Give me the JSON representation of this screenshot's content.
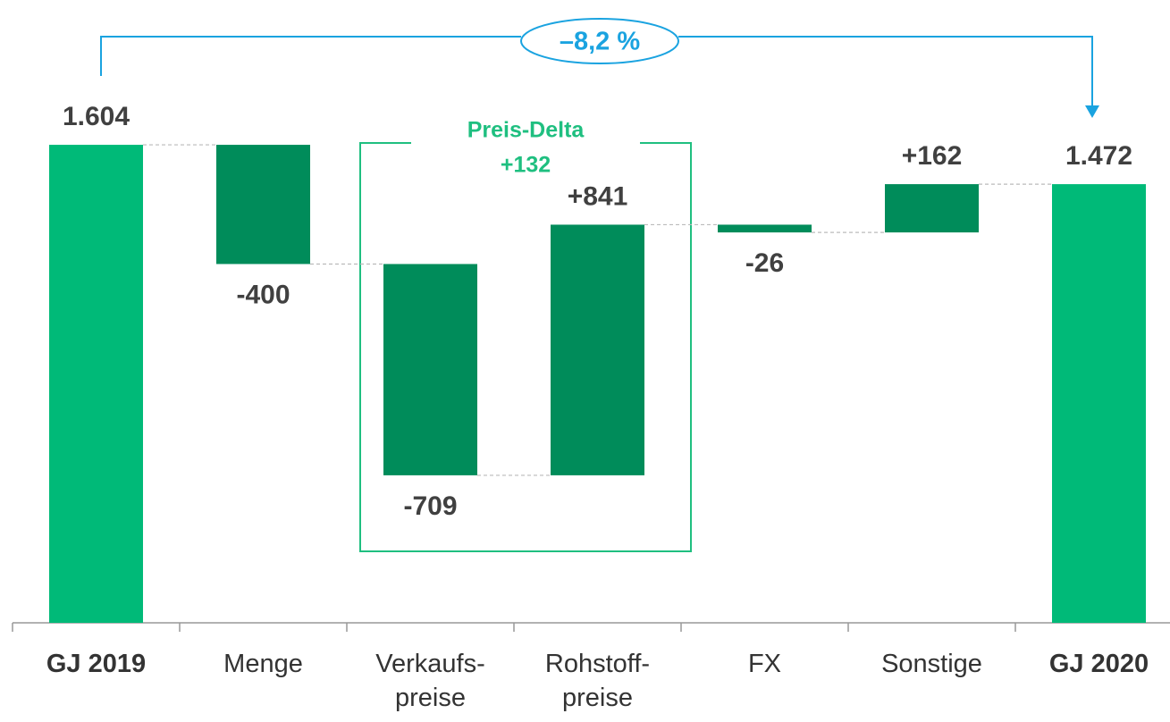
{
  "chart_data": {
    "type": "waterfall",
    "categories": [
      "GJ 2019",
      "Menge",
      "Verkaufs-\npreise",
      "Rohstoff-\npreise",
      "FX",
      "Sonstige",
      "GJ 2020"
    ],
    "measure": [
      "absolute",
      "relative",
      "relative",
      "relative",
      "relative",
      "relative",
      "absolute"
    ],
    "values": [
      1604,
      -400,
      -709,
      841,
      -26,
      162,
      1472
    ],
    "value_labels": [
      "1.604",
      "-400",
      "-709",
      "+841",
      "-26",
      "+162",
      "1.472"
    ],
    "total_color": "#00ba78",
    "delta_color": "#008c5a",
    "ylim": [
      0,
      2000
    ],
    "annotations": {
      "change": "–8,2 %",
      "group_title": "Preis-Delta",
      "group_value": "+132"
    }
  }
}
